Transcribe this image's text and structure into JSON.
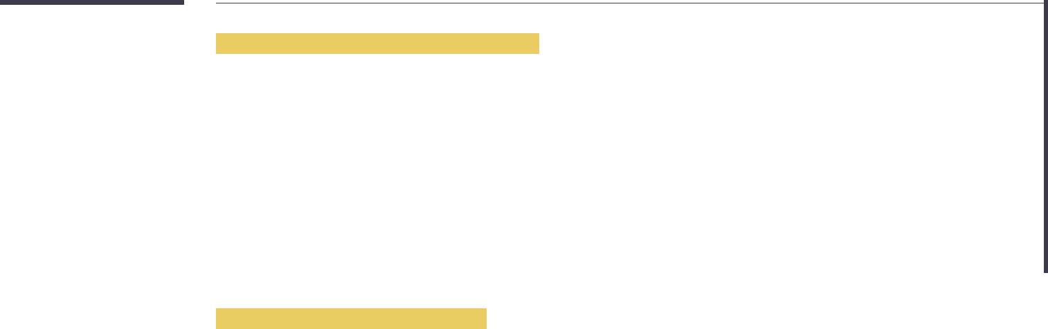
{
  "colors": {
    "accent_dark": "#3d3a4b",
    "heading_highlight": "#eacc62",
    "background": "#fefefe"
  }
}
